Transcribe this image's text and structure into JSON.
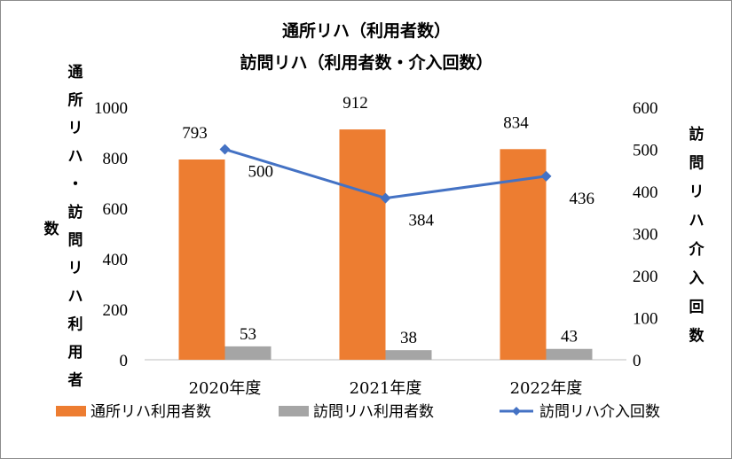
{
  "chart_data": {
    "type": "bar",
    "title": "通所リハ（利用者数）",
    "subtitle": "訪問リハ（利用者数・介入回数）",
    "categories": [
      "2020年度",
      "2021年度",
      "2022年度"
    ],
    "y_left_label_short": "数",
    "y_left_label": "通所リハ・訪問リハ利用者",
    "y_right_label": "訪問リハ介入回数",
    "y_left_range": [
      0,
      1000
    ],
    "y_left_ticks": [
      0,
      200,
      400,
      600,
      800,
      1000
    ],
    "y_right_range": [
      0,
      600
    ],
    "y_right_ticks": [
      0,
      100,
      200,
      300,
      400,
      500,
      600
    ],
    "grid": false,
    "legend_position": "bottom",
    "series": [
      {
        "name": "通所リハ利用者数",
        "type": "bar",
        "axis": "left",
        "color": "#ED7D31",
        "values": [
          793,
          912,
          834
        ]
      },
      {
        "name": "訪問リハ利用者数",
        "type": "bar",
        "axis": "left",
        "color": "#A5A5A5",
        "values": [
          53,
          38,
          43
        ]
      },
      {
        "name": "訪問リハ介入回数",
        "type": "line",
        "axis": "right",
        "color": "#4472C4",
        "marker": "diamond",
        "values": [
          500,
          384,
          436
        ]
      }
    ]
  }
}
